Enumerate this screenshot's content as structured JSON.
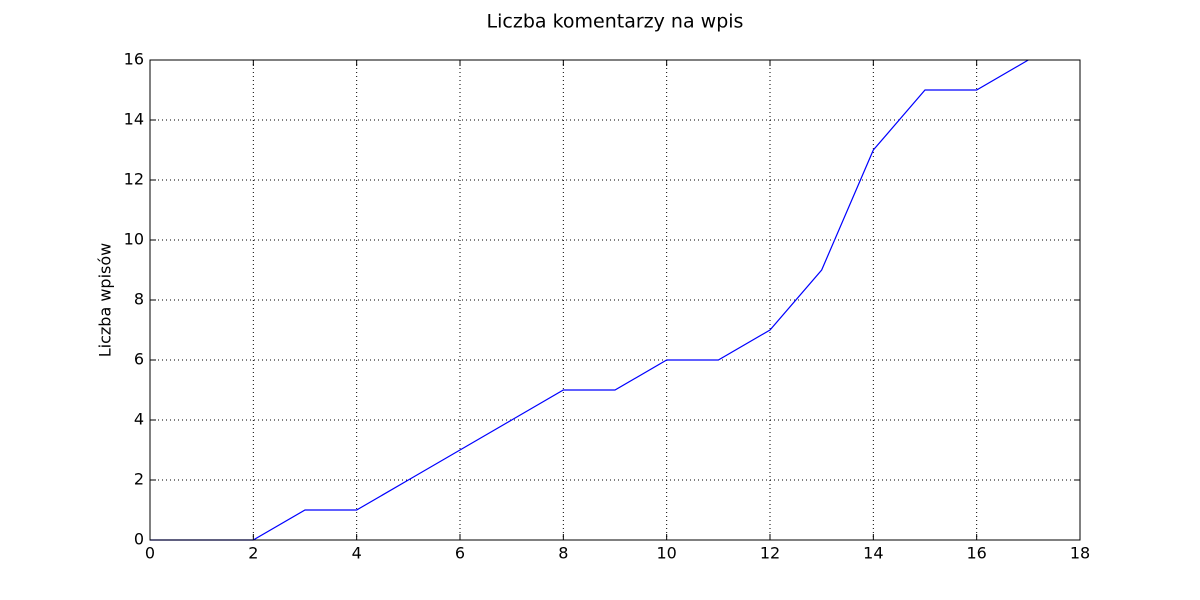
{
  "chart_data": {
    "type": "line",
    "title": "Liczba komentarzy na wpis",
    "y_label": "Liczba wpisów",
    "x": [
      0,
      1,
      2,
      3,
      4,
      5,
      6,
      7,
      8,
      9,
      10,
      11,
      12,
      13,
      14,
      15,
      16,
      17
    ],
    "series": [
      {
        "name": "Liczba wpisów",
        "color": "#0000ff",
        "values": [
          0,
          0,
          0,
          1,
          1,
          2,
          3,
          4,
          5,
          5,
          6,
          6,
          7,
          9,
          13,
          15,
          15,
          16
        ]
      }
    ],
    "xlim": [
      0,
      18
    ],
    "xticks": [
      0,
      2,
      4,
      6,
      8,
      10,
      12,
      14,
      16,
      18
    ],
    "ylim": [
      0,
      16
    ],
    "yticks": [
      0,
      2,
      4,
      6,
      8,
      10,
      12,
      14,
      16
    ],
    "grid": true
  }
}
